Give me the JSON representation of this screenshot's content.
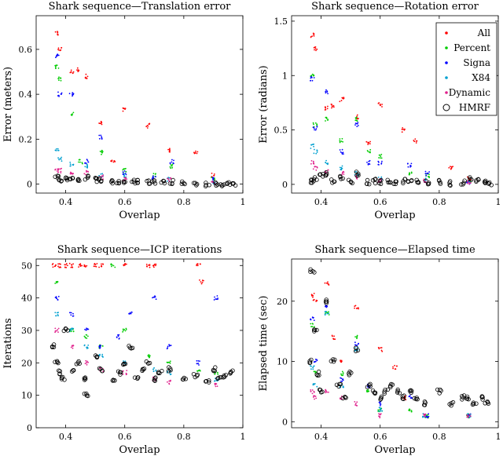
{
  "chart_data": [
    {
      "type": "scatter",
      "title": "Shark sequence—Translation error",
      "xlabel": "Overlap",
      "ylabel": "Error (meters)",
      "xlim": [
        0.3,
        1.0
      ],
      "ylim": [
        -0.04,
        0.75
      ],
      "xticks": [
        0.4,
        0.6,
        0.8,
        1
      ],
      "xtick_labels": [
        "0.4",
        "0.6",
        "0.8",
        "1"
      ],
      "yticks": [
        0,
        0.2,
        0.4,
        0.6
      ],
      "ytick_labels": [
        "0",
        "0.2",
        "0.4",
        "0.6"
      ],
      "legend": "",
      "series": [
        {
          "name": "All",
          "x": [
            0.37,
            0.38,
            0.42,
            0.44,
            0.47,
            0.52,
            0.56,
            0.6,
            0.68,
            0.75,
            0.84,
            0.9
          ],
          "y": [
            0.67,
            0.6,
            0.5,
            0.51,
            0.48,
            0.27,
            0.1,
            0.33,
            0.26,
            0.15,
            0.14,
            0.04
          ]
        },
        {
          "name": "Percent",
          "x": [
            0.37,
            0.38,
            0.42,
            0.45,
            0.52,
            0.6,
            0.7,
            0.76,
            0.9
          ],
          "y": [
            0.52,
            0.47,
            0.31,
            0.1,
            0.14,
            0.06,
            0.04,
            0.08,
            0.02
          ]
        },
        {
          "name": "Signa",
          "x": [
            0.37,
            0.38,
            0.42,
            0.47,
            0.52,
            0.6,
            0.7,
            0.76,
            0.9
          ],
          "y": [
            0.57,
            0.4,
            0.4,
            0.1,
            0.21,
            0.05,
            0.03,
            0.1,
            0.02
          ]
        },
        {
          "name": "X84",
          "x": [
            0.37,
            0.38,
            0.42,
            0.47,
            0.52,
            0.6,
            0.75,
            0.9
          ],
          "y": [
            0.15,
            0.11,
            0.09,
            0.08,
            0.04,
            0.04,
            0.02,
            0.01
          ]
        },
        {
          "name": "Dynamic",
          "x": [
            0.37,
            0.38,
            0.42,
            0.47,
            0.52,
            0.6,
            0.75,
            0.9
          ],
          "y": [
            0.06,
            0.06,
            0.05,
            0.05,
            0.03,
            0.02,
            0.02,
            0.01
          ]
        },
        {
          "name": "HMRF",
          "x": [
            0.37,
            0.38,
            0.4,
            0.42,
            0.44,
            0.47,
            0.5,
            0.52,
            0.56,
            0.58,
            0.6,
            0.63,
            0.65,
            0.68,
            0.7,
            0.73,
            0.76,
            0.8,
            0.84,
            0.88,
            0.91,
            0.93,
            0.95,
            0.97
          ],
          "y": [
            0.03,
            0.02,
            0.02,
            0.03,
            0.02,
            0.03,
            0.02,
            0.02,
            0.01,
            0.01,
            0.01,
            0.01,
            0.01,
            0.01,
            0.01,
            0.01,
            0.01,
            0.01,
            0.0,
            0.0,
            0.0,
            0.0,
            0.0,
            0.0
          ]
        }
      ]
    },
    {
      "type": "scatter",
      "title": "Shark sequence—Rotation error",
      "xlabel": "Overlap",
      "ylabel": "Error (radians)",
      "xlim": [
        0.3,
        1.0
      ],
      "ylim": [
        -0.08,
        1.55
      ],
      "xticks": [
        0.4,
        0.6,
        0.8,
        1
      ],
      "xtick_labels": [
        "0.4",
        "0.6",
        "0.8",
        "1"
      ],
      "yticks": [
        0,
        0.5,
        1,
        1.5
      ],
      "ytick_labels": [
        "0",
        "0.5",
        "1",
        "1.5"
      ],
      "legend": "top-right",
      "series": [
        {
          "name": "All",
          "x": [
            0.37,
            0.38,
            0.42,
            0.44,
            0.47,
            0.52,
            0.56,
            0.6,
            0.68,
            0.72,
            0.84,
            0.9
          ],
          "y": [
            1.37,
            1.25,
            0.7,
            0.72,
            0.78,
            0.62,
            0.38,
            0.73,
            0.5,
            0.4,
            0.15,
            0.05
          ]
        },
        {
          "name": "Percent",
          "x": [
            0.37,
            0.38,
            0.42,
            0.47,
            0.52,
            0.56,
            0.6,
            0.7,
            0.76,
            0.9
          ],
          "y": [
            1.0,
            0.55,
            0.6,
            0.4,
            0.6,
            0.3,
            0.26,
            0.1,
            0.08,
            0.03
          ]
        },
        {
          "name": "Signa",
          "x": [
            0.37,
            0.38,
            0.42,
            0.47,
            0.52,
            0.56,
            0.6,
            0.7,
            0.76,
            0.9
          ],
          "y": [
            0.97,
            0.52,
            0.85,
            0.3,
            0.55,
            0.2,
            0.2,
            0.18,
            0.1,
            0.03
          ]
        },
        {
          "name": "X84",
          "x": [
            0.37,
            0.38,
            0.42,
            0.47,
            0.52,
            0.6,
            0.75,
            0.9
          ],
          "y": [
            0.35,
            0.3,
            0.2,
            0.15,
            0.1,
            0.06,
            0.04,
            0.02
          ]
        },
        {
          "name": "Dynamic",
          "x": [
            0.37,
            0.38,
            0.42,
            0.47,
            0.52,
            0.6,
            0.75,
            0.9
          ],
          "y": [
            0.2,
            0.15,
            0.12,
            0.1,
            0.06,
            0.04,
            0.03,
            0.02
          ]
        },
        {
          "name": "HMRF",
          "x": [
            0.37,
            0.38,
            0.4,
            0.42,
            0.44,
            0.47,
            0.5,
            0.52,
            0.56,
            0.58,
            0.6,
            0.63,
            0.65,
            0.68,
            0.7,
            0.73,
            0.76,
            0.8,
            0.84,
            0.88,
            0.91,
            0.93,
            0.95,
            0.97
          ],
          "y": [
            0.03,
            0.05,
            0.08,
            0.1,
            0.03,
            0.06,
            0.03,
            0.1,
            0.02,
            0.03,
            0.02,
            0.02,
            0.02,
            0.03,
            0.02,
            0.03,
            0.02,
            0.02,
            0.01,
            0.02,
            0.05,
            0.03,
            0.02,
            0.01
          ]
        }
      ]
    },
    {
      "type": "scatter",
      "title": "Shark sequence—ICP iterations",
      "xlabel": "Overlap",
      "ylabel": "Iterations",
      "xlim": [
        0.3,
        1.0
      ],
      "ylim": [
        0,
        52
      ],
      "xticks": [
        0.4,
        0.6,
        0.8,
        1
      ],
      "xtick_labels": [
        "0.4",
        "0.6",
        "0.8",
        "1"
      ],
      "yticks": [
        0,
        10,
        20,
        30,
        40,
        50
      ],
      "ytick_labels": [
        "0",
        "10",
        "20",
        "30",
        "40",
        "50"
      ],
      "legend": "",
      "series": [
        {
          "name": "All",
          "x": [
            0.36,
            0.38,
            0.4,
            0.42,
            0.45,
            0.47,
            0.5,
            0.52,
            0.6,
            0.68,
            0.7,
            0.85,
            0.86
          ],
          "y": [
            50,
            50,
            50,
            50,
            50,
            50,
            50,
            50,
            50,
            50,
            50,
            50,
            45
          ]
        },
        {
          "name": "Percent",
          "x": [
            0.37,
            0.42,
            0.47,
            0.52,
            0.56,
            0.6,
            0.68,
            0.75,
            0.85,
            0.91
          ],
          "y": [
            45,
            30,
            28,
            25,
            50,
            30,
            22,
            20,
            18,
            17
          ]
        },
        {
          "name": "Signa",
          "x": [
            0.37,
            0.42,
            0.47,
            0.52,
            0.58,
            0.62,
            0.7,
            0.75,
            0.85,
            0.91
          ],
          "y": [
            40,
            35,
            30,
            25,
            28,
            35,
            40,
            25,
            20,
            40
          ]
        },
        {
          "name": "X84",
          "x": [
            0.37,
            0.42,
            0.47,
            0.52,
            0.6,
            0.7,
            0.75,
            0.91
          ],
          "y": [
            35,
            30,
            25,
            22,
            20,
            18,
            17,
            15
          ]
        },
        {
          "name": "Dynamic",
          "x": [
            0.37,
            0.42,
            0.47,
            0.52,
            0.6,
            0.7,
            0.75,
            0.91
          ],
          "y": [
            30,
            25,
            20,
            18,
            17,
            15,
            14,
            13
          ]
        },
        {
          "name": "HMRF",
          "x": [
            0.36,
            0.37,
            0.38,
            0.39,
            0.4,
            0.42,
            0.44,
            0.46,
            0.47,
            0.5,
            0.52,
            0.56,
            0.58,
            0.6,
            0.62,
            0.64,
            0.66,
            0.68,
            0.7,
            0.72,
            0.75,
            0.8,
            0.84,
            0.88,
            0.9,
            0.92,
            0.94,
            0.96
          ],
          "y": [
            25,
            20,
            17,
            15,
            30,
            18,
            20,
            15,
            10,
            22,
            18,
            15,
            17,
            20,
            25,
            15,
            18,
            20,
            15,
            17,
            18,
            15,
            16,
            14,
            18,
            15,
            16,
            17
          ]
        }
      ]
    },
    {
      "type": "scatter",
      "title": "Shark sequence—Elapsed time",
      "xlabel": "Overlap",
      "ylabel": "Elapsed time (sec)",
      "xlim": [
        0.3,
        1.0
      ],
      "ylim": [
        -1,
        27
      ],
      "xticks": [
        0.4,
        0.6,
        0.8,
        1
      ],
      "xtick_labels": [
        "0.4",
        "0.6",
        "0.8",
        "1"
      ],
      "yticks": [
        0,
        10,
        20
      ],
      "ytick_labels": [
        "0",
        "10",
        "20"
      ],
      "legend": "",
      "series": [
        {
          "name": "All",
          "x": [
            0.37,
            0.38,
            0.42,
            0.44,
            0.47,
            0.52,
            0.6,
            0.65,
            0.68
          ],
          "y": [
            21,
            20,
            23,
            14,
            10,
            19,
            12,
            9,
            4
          ]
        },
        {
          "name": "Percent",
          "x": [
            0.37,
            0.38,
            0.42,
            0.47,
            0.52,
            0.56,
            0.6,
            0.7,
            0.76,
            0.9
          ],
          "y": [
            16,
            8,
            18,
            8,
            14,
            5,
            2,
            2,
            1,
            1
          ]
        },
        {
          "name": "Signa",
          "x": [
            0.37,
            0.38,
            0.42,
            0.47,
            0.52,
            0.56,
            0.6,
            0.7,
            0.76,
            0.9
          ],
          "y": [
            17,
            10,
            19,
            7,
            13,
            6,
            3,
            4,
            1,
            1
          ]
        },
        {
          "name": "X84",
          "x": [
            0.37,
            0.38,
            0.42,
            0.47,
            0.52,
            0.6,
            0.75,
            0.9
          ],
          "y": [
            9,
            6,
            18,
            6,
            12,
            2,
            1,
            1
          ]
        },
        {
          "name": "Dynamic",
          "x": [
            0.37,
            0.38,
            0.42,
            0.47,
            0.52,
            0.6,
            0.75,
            0.9
          ],
          "y": [
            5,
            4,
            5,
            4,
            3,
            1,
            1,
            1
          ]
        },
        {
          "name": "HMRF",
          "x": [
            0.36,
            0.37,
            0.38,
            0.39,
            0.4,
            0.42,
            0.44,
            0.46,
            0.48,
            0.5,
            0.52,
            0.56,
            0.58,
            0.6,
            0.62,
            0.64,
            0.66,
            0.68,
            0.7,
            0.72,
            0.75,
            0.8,
            0.84,
            0.88,
            0.9,
            0.92,
            0.94,
            0.96
          ],
          "y": [
            10,
            25,
            15,
            8,
            5,
            20,
            10,
            6,
            4,
            8,
            12,
            6,
            5,
            4,
            5,
            6,
            5,
            4,
            5,
            4,
            3,
            5,
            3,
            4,
            4,
            3,
            4,
            3
          ]
        }
      ]
    }
  ],
  "legend": {
    "entries": [
      {
        "label": "All",
        "color": "#ff0000",
        "marker": "dot"
      },
      {
        "label": "Percent",
        "color": "#00cc00",
        "marker": "dot"
      },
      {
        "label": "Signa",
        "color": "#0000ff",
        "marker": "dot"
      },
      {
        "label": "X84",
        "color": "#00a0d0",
        "marker": "dot"
      },
      {
        "label": "Dynamic",
        "color": "#e0208c",
        "marker": "dot"
      },
      {
        "label": "HMRF",
        "color": "#000000",
        "marker": "circle"
      }
    ]
  }
}
